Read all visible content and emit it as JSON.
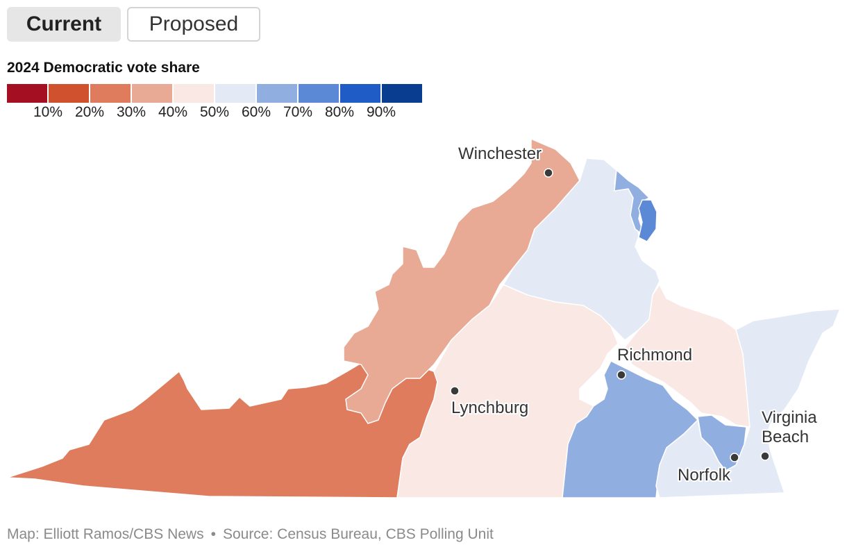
{
  "toggle": {
    "current_label": "Current",
    "proposed_label": "Proposed"
  },
  "legend": {
    "title": "2024 Democratic vote share",
    "colors": [
      "#a50f22",
      "#d0512e",
      "#de7c5d",
      "#e8a995",
      "#f9e8e4",
      "#e3eaf6",
      "#90aee0",
      "#5b89d5",
      "#1f5cc6",
      "#083d8f"
    ],
    "ticks": [
      "10%",
      "20%",
      "30%",
      "40%",
      "50%",
      "60%",
      "70%",
      "80%",
      "90%"
    ]
  },
  "map": {
    "cities": {
      "winchester": "Winchester",
      "richmond": "Richmond",
      "lynchburg": "Lynchburg",
      "virginia_beach_line1": "Virginia",
      "virginia_beach_line2": "Beach",
      "norfolk": "Norfolk"
    }
  },
  "footer": {
    "credit": "Map: Elliott Ramos/CBS News",
    "separator": "•",
    "source": "Source: Census Bureau, CBS Polling Unit"
  }
}
